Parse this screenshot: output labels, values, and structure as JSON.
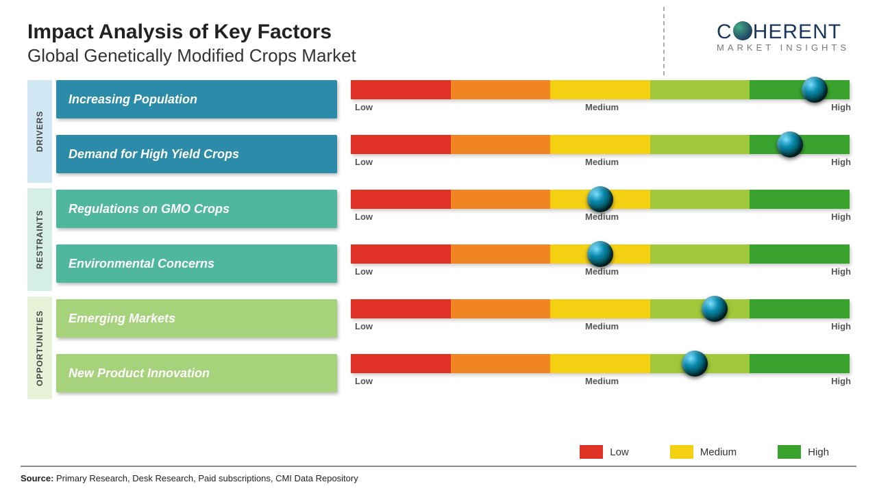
{
  "header": {
    "title": "Impact Analysis of Key Factors",
    "subtitle": "Global Genetically Modified Crops Market"
  },
  "logo": {
    "line1_pre": "C",
    "line1_post": "HERENT",
    "line2": "MARKET INSIGHTS"
  },
  "gauge": {
    "segment_colors": [
      "#e03127",
      "#f08522",
      "#f4d013",
      "#a1c83a",
      "#3aa32e"
    ],
    "labels": {
      "low": "Low",
      "medium": "Medium",
      "high": "High"
    }
  },
  "categories": [
    {
      "name": "DRIVERS",
      "tab_bg": "#cfe8f4",
      "row_bg": "#2b8ba8",
      "factors": [
        {
          "label": "Increasing Population",
          "position_pct": 93
        },
        {
          "label": "Demand for High Yield Crops",
          "position_pct": 88
        }
      ]
    },
    {
      "name": "RESTRAINTS",
      "tab_bg": "#d5efe7",
      "row_bg": "#4fb79e",
      "factors": [
        {
          "label": "Regulations on GMO Crops",
          "position_pct": 50
        },
        {
          "label": "Environmental Concerns",
          "position_pct": 50
        }
      ]
    },
    {
      "name": "OPPORTUNITIES",
      "tab_bg": "#e7f2d8",
      "row_bg": "#a5d27b",
      "factors": [
        {
          "label": "Emerging Markets",
          "position_pct": 73
        },
        {
          "label": "New Product Innovation",
          "position_pct": 69
        }
      ]
    }
  ],
  "legend": {
    "items": [
      {
        "label": "Low",
        "color": "#e03127"
      },
      {
        "label": "Medium",
        "color": "#f4d013"
      },
      {
        "label": "High",
        "color": "#3aa32e"
      }
    ]
  },
  "source": {
    "prefix": "Source: ",
    "text": "Primary Research, Desk Research, Paid subscriptions, CMI Data Repository"
  }
}
